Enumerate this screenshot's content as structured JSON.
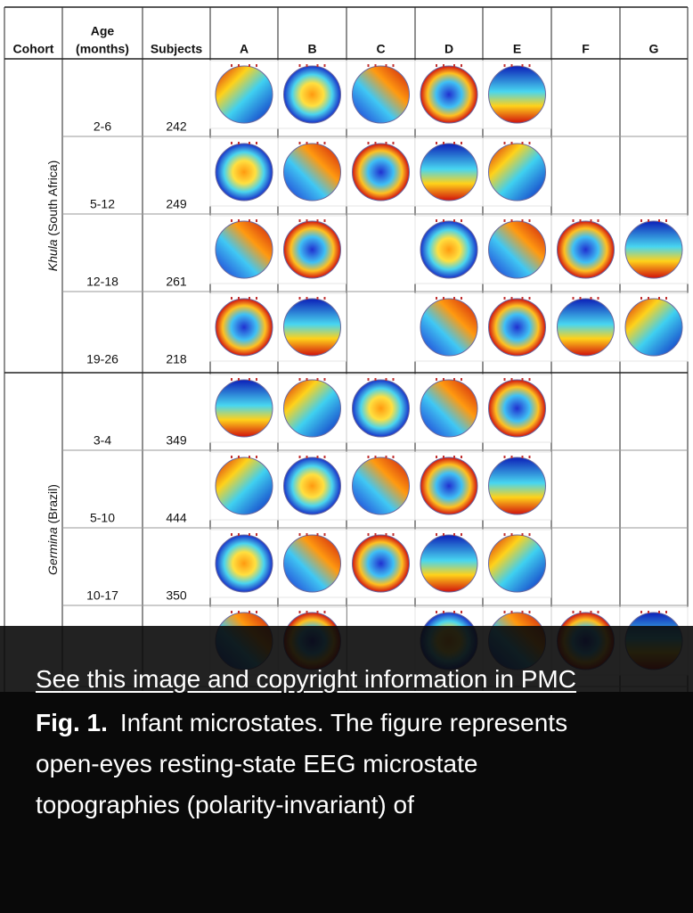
{
  "header": {
    "cohort": "Cohort",
    "age": [
      "Age",
      "(months)"
    ],
    "subjects": "Subjects",
    "classes": [
      "A",
      "B",
      "C",
      "D",
      "E",
      "F",
      "G"
    ]
  },
  "cohorts": [
    {
      "name": "Khula",
      "region": "(South Africa)",
      "rows": [
        {
          "age": "2-6",
          "subjects": 242
        },
        {
          "age": "5-12",
          "subjects": 249
        },
        {
          "age": "12-18",
          "subjects": 261
        },
        {
          "age": "19-26",
          "subjects": 218
        }
      ]
    },
    {
      "name": "Germina",
      "region": "(Brazil)",
      "rows": [
        {
          "age": "3-4",
          "subjects": 349
        },
        {
          "age": "5-10",
          "subjects": 444
        },
        {
          "age": "10-17",
          "subjects": 350
        }
      ]
    }
  ],
  "caption": {
    "link": "See this image and copyright information in PMC",
    "label": "Fig. 1.",
    "text": "Infant microstates. The figure represents open-eyes resting-state EEG microstate topographies (polarity-invariant) of"
  }
}
